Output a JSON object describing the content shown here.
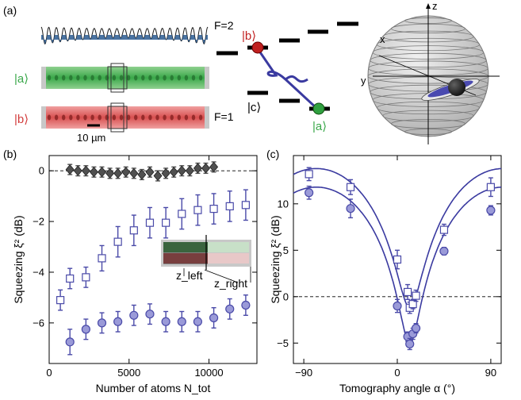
{
  "panel_labels": {
    "a": "(a)",
    "b": "(b)",
    "c": "(c)"
  },
  "panel_a": {
    "state_a_label": "|a⟩",
    "state_b_label": "|b⟩",
    "state_c_label": "|c⟩",
    "scalebar_label": "10 µm",
    "level_F2": "F=2",
    "level_F1": "F=1",
    "sphere_axis_x": "x",
    "sphere_axis_y": "y",
    "sphere_axis_z": "z",
    "colors": {
      "green": "#3aa84a",
      "red": "#d23a3a",
      "blue": "#3a3aa0",
      "potential": "#2a5a90"
    }
  },
  "chart_data": [
    {
      "type": "scatter",
      "panel": "b",
      "xlabel": "Number of atoms N_tot",
      "ylabel": "Squeezing ξ² (dB)",
      "xlim": [
        0,
        13000
      ],
      "ylim": [
        -7.6,
        0.6
      ],
      "xticks": [
        0,
        5000,
        10000
      ],
      "yticks": [
        0,
        -2,
        -4,
        -6
      ],
      "grid": false,
      "reference_line_y": 0,
      "inset": {
        "z_left": "z_left",
        "z_right": "z_right"
      },
      "series": [
        {
          "marker": "diamond",
          "color": "#505050",
          "x": [
            1300,
            2300,
            3300,
            4300,
            5300,
            6300,
            7300,
            8300,
            9300,
            10300,
            1800,
            2800,
            3800,
            4800,
            5800,
            6800,
            7800,
            8800,
            9800
          ],
          "y": [
            0.05,
            0.0,
            -0.05,
            -0.1,
            -0.1,
            -0.05,
            -0.1,
            0.0,
            0.1,
            0.15,
            0.0,
            -0.05,
            -0.1,
            -0.05,
            -0.15,
            -0.2,
            -0.05,
            0.0,
            0.1
          ],
          "err": [
            0.2,
            0.2,
            0.2,
            0.2,
            0.2,
            0.2,
            0.2,
            0.2,
            0.2,
            0.2,
            0.2,
            0.2,
            0.2,
            0.2,
            0.2,
            0.2,
            0.2,
            0.2,
            0.2
          ]
        },
        {
          "marker": "square",
          "color": "#4a4aa8",
          "x": [
            700,
            1300,
            2300,
            3300,
            4300,
            5300,
            6300,
            7300,
            8300,
            9300,
            10300,
            11300,
            12300
          ],
          "y": [
            -5.1,
            -4.25,
            -4.2,
            -3.45,
            -2.8,
            -2.35,
            -2.05,
            -2.05,
            -1.7,
            -1.55,
            -1.5,
            -1.4,
            -1.35
          ],
          "err": [
            0.4,
            0.4,
            0.4,
            0.5,
            0.6,
            0.6,
            0.6,
            0.6,
            0.6,
            0.6,
            0.6,
            0.6,
            0.6
          ]
        },
        {
          "marker": "circle",
          "color": "#4a4aa8",
          "x": [
            1300,
            2300,
            3300,
            4300,
            5300,
            6300,
            7300,
            8300,
            9300,
            10300,
            11300,
            12300
          ],
          "y": [
            -6.75,
            -6.25,
            -6.0,
            -5.95,
            -5.7,
            -5.65,
            -5.95,
            -5.95,
            -5.95,
            -5.8,
            -5.45,
            -5.3
          ],
          "err": [
            0.5,
            0.4,
            0.4,
            0.4,
            0.4,
            0.4,
            0.4,
            0.4,
            0.4,
            0.4,
            0.4,
            0.4
          ]
        }
      ]
    },
    {
      "type": "scatter",
      "panel": "c",
      "xlabel": "Tomography angle α (°)",
      "ylabel": "Squeezing ξ² (dB)",
      "xlim": [
        -100,
        100
      ],
      "ylim": [
        -7.2,
        15.2
      ],
      "xticks": [
        -90,
        0,
        90
      ],
      "yticks": [
        10,
        5,
        0,
        -5
      ],
      "grid": false,
      "reference_line_y": 0,
      "series": [
        {
          "marker": "square",
          "color": "#4a4aa8",
          "x": [
            -85,
            -45,
            0,
            10,
            12,
            15,
            18,
            45,
            90
          ],
          "y": [
            13.2,
            11.8,
            4.0,
            0.5,
            -1.2,
            -0.8,
            0.1,
            7.2,
            11.8
          ],
          "err": [
            0.7,
            0.8,
            1.0,
            0.8,
            0.6,
            0.5,
            0.6,
            0.6,
            1.0
          ]
        },
        {
          "marker": "circle",
          "color": "#4a4aa8",
          "x": [
            -85,
            -45,
            0,
            10,
            12,
            15,
            18,
            45,
            90
          ],
          "y": [
            11.2,
            9.5,
            -1.0,
            -4.3,
            -5.1,
            -4.0,
            -3.4,
            4.9,
            9.3
          ],
          "err": [
            0.7,
            1.0,
            0.7,
            0.5,
            0.6,
            0.6,
            0.5,
            0.4,
            0.5
          ]
        }
      ]
    }
  ]
}
